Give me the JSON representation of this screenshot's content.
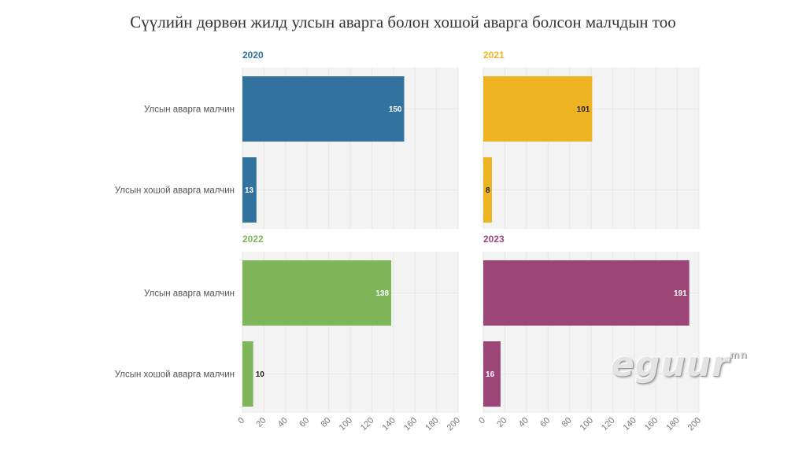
{
  "chart_data": {
    "type": "bar",
    "orientation": "horizontal",
    "title": "Сүүлийн дөрвөн жилд улсын аварга болон хошой аварга болсон малчдын тоо",
    "categories": [
      "Улсын аварга малчин",
      "Улсын хошой аварга малчин"
    ],
    "xlim": [
      0,
      200
    ],
    "xticks": [
      "0",
      "20",
      "40",
      "60",
      "80",
      "100",
      "120",
      "140",
      "160",
      "180",
      "200"
    ],
    "grid": true,
    "panels": [
      {
        "year": "2020",
        "color": "#31739e",
        "values": [
          150,
          13
        ]
      },
      {
        "year": "2021",
        "color": "#edb321",
        "values": [
          101,
          8
        ]
      },
      {
        "year": "2022",
        "color": "#7fb65a",
        "values": [
          138,
          10
        ]
      },
      {
        "year": "2023",
        "color": "#9b4677",
        "values": [
          191,
          16
        ]
      }
    ]
  },
  "watermark": {
    "text": "eguur",
    "suffix": "mn"
  }
}
